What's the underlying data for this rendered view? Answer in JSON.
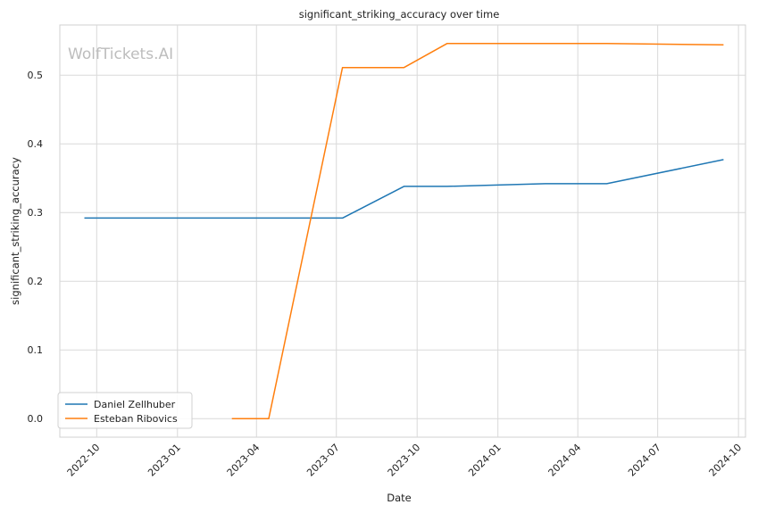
{
  "chart_data": {
    "type": "line",
    "title": "significant_striking_accuracy over time",
    "xlabel": "Date",
    "ylabel": "significant_striking_accuracy",
    "watermark": "WolfTickets.AI",
    "x_ticks": [
      "2022-10",
      "2023-01",
      "2023-04",
      "2023-07",
      "2023-10",
      "2024-01",
      "2024-04",
      "2024-07",
      "2024-10"
    ],
    "y_ticks": [
      "0.0",
      "0.1",
      "0.2",
      "0.3",
      "0.4",
      "0.5"
    ],
    "xlim": [
      "2022-08-20",
      "2024-10-09"
    ],
    "ylim": [
      -0.027,
      0.573
    ],
    "grid": true,
    "legend_position": "lower-left",
    "series": [
      {
        "name": "Daniel Zellhuber",
        "color": "#1f77b4",
        "points": [
          {
            "x": "2022-09-17",
            "y": 0.292
          },
          {
            "x": "2023-07-08",
            "y": 0.292
          },
          {
            "x": "2023-09-16",
            "y": 0.338
          },
          {
            "x": "2023-11-04",
            "y": 0.338
          },
          {
            "x": "2024-02-24",
            "y": 0.342
          },
          {
            "x": "2024-05-04",
            "y": 0.342
          },
          {
            "x": "2024-09-14",
            "y": 0.377
          }
        ]
      },
      {
        "name": "Esteban Ribovics",
        "color": "#ff7f0e",
        "points": [
          {
            "x": "2023-03-04",
            "y": 0.0
          },
          {
            "x": "2023-04-15",
            "y": 0.0
          },
          {
            "x": "2023-07-08",
            "y": 0.511
          },
          {
            "x": "2023-09-16",
            "y": 0.511
          },
          {
            "x": "2023-11-04",
            "y": 0.546
          },
          {
            "x": "2024-05-04",
            "y": 0.546
          },
          {
            "x": "2024-09-14",
            "y": 0.544
          }
        ]
      }
    ]
  }
}
